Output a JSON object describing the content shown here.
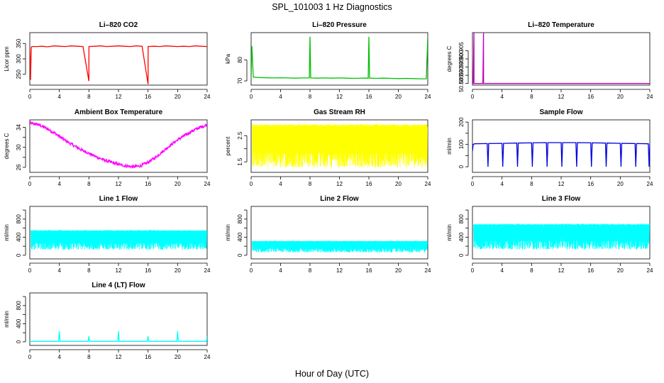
{
  "figure": {
    "title": "SPL_101003  1 Hz Diagnostics",
    "xlabel": "Hour of Day (UTC)"
  },
  "chart_data": [
    {
      "type": "line",
      "title": "Li–820 CO2",
      "ylabel": "Licor ppm",
      "color": "#ff0000",
      "xlim": [
        0,
        24
      ],
      "ylim": [
        215,
        385
      ],
      "yticks": [
        250,
        300,
        350
      ],
      "xticks": [
        0,
        4,
        8,
        12,
        16,
        20,
        24
      ],
      "x": [
        0.0,
        0.1,
        0.2,
        0.3,
        1.0,
        1.6,
        2.4,
        3.3,
        4.0,
        4.8,
        5.6,
        6.4,
        7.2,
        8.0,
        8.01,
        8.8,
        9.6,
        10.4,
        11.2,
        12.0,
        12.8,
        13.6,
        14.4,
        15.2,
        16.0,
        16.01,
        16.8,
        17.6,
        18.4,
        19.2,
        20.0,
        20.8,
        21.6,
        22.4,
        23.2,
        24.0
      ],
      "y": [
        335,
        232,
        338,
        340,
        340,
        341,
        339,
        342,
        341,
        340,
        342,
        341,
        340,
        228,
        340,
        341,
        342,
        340,
        341,
        342,
        341,
        340,
        342,
        341,
        218,
        340,
        341,
        340,
        342,
        341,
        340,
        341,
        340,
        342,
        341,
        340
      ]
    },
    {
      "type": "line",
      "title": "Li–820 Pressure",
      "ylabel": "kPa",
      "color": "#00c000",
      "xlim": [
        0,
        24
      ],
      "ylim": [
        68,
        93
      ],
      "yticks": [
        70,
        80
      ],
      "xticks": [
        0,
        4,
        8,
        12,
        16,
        20,
        24
      ],
      "x": [
        0.0,
        0.1,
        0.3,
        1.0,
        2.0,
        3.0,
        4.0,
        5.0,
        6.0,
        7.0,
        7.9,
        8.0,
        8.1,
        9.0,
        10.0,
        11.0,
        12.0,
        13.0,
        14.0,
        15.0,
        15.9,
        16.0,
        16.1,
        17.0,
        18.0,
        19.0,
        20.0,
        21.0,
        22.0,
        23.0,
        23.8,
        24.0
      ],
      "y": [
        71.5,
        86.5,
        71.8,
        71.6,
        71.5,
        71.4,
        71.5,
        71.4,
        71.3,
        71.4,
        71.4,
        91.0,
        71.4,
        71.3,
        71.4,
        71.3,
        71.4,
        71.3,
        71.2,
        71.3,
        71.3,
        91.0,
        71.3,
        71.2,
        71.3,
        71.2,
        71.1,
        71.2,
        71.1,
        71.0,
        71.0,
        91.0
      ]
    },
    {
      "type": "line",
      "title": "Li–820 Temperature",
      "ylabel": "degrees C",
      "color": "#c000c0",
      "xlim": [
        0,
        24
      ],
      "ylim": [
        50.884,
        50.916
      ],
      "yticks": [
        50.885,
        50.895,
        50.905
      ],
      "ytick_labels": [
        "50.885",
        "50.890",
        "50.895",
        "50.900",
        "50.905"
      ],
      "ytick_all": [
        50.885,
        50.89,
        50.895,
        50.9,
        50.905
      ],
      "xticks": [
        0,
        4,
        8,
        12,
        16,
        20,
        24
      ],
      "x": [
        0.0,
        0.1,
        0.2,
        0.21,
        0.3,
        1.4,
        1.5,
        1.51,
        1.6,
        24.0
      ],
      "y": [
        50.885,
        50.885,
        50.916,
        50.885,
        50.885,
        50.885,
        50.916,
        50.885,
        50.885,
        50.885
      ]
    },
    {
      "type": "line",
      "title": "Ambient Box Temperature",
      "ylabel": "degrees C",
      "color": "#ff00ff",
      "xlim": [
        0,
        24
      ],
      "ylim": [
        25,
        35.5
      ],
      "yticks": [
        26,
        30,
        34
      ],
      "ytick_all": [
        26,
        28,
        30,
        32,
        34
      ],
      "xticks": [
        0,
        4,
        8,
        12,
        16,
        20,
        24
      ],
      "x": [
        0,
        1,
        2,
        3,
        4,
        5,
        6,
        7,
        8,
        9,
        10,
        11,
        12,
        13,
        14,
        15,
        16,
        17,
        18,
        19,
        20,
        21,
        22,
        23,
        24
      ],
      "y": [
        34.8,
        34.6,
        34.0,
        33.2,
        32.2,
        31.2,
        30.3,
        29.5,
        28.8,
        28.1,
        27.5,
        27.0,
        26.6,
        26.3,
        26.1,
        26.3,
        27.0,
        28.0,
        29.2,
        30.4,
        31.5,
        32.4,
        33.3,
        34.0,
        34.5
      ],
      "noise": 0.6
    },
    {
      "type": "line",
      "title": "Gas Stream RH",
      "ylabel": "percent",
      "color": "#ffff00",
      "xlim": [
        0,
        24
      ],
      "ylim": [
        1.1,
        3.1
      ],
      "yticks": [
        1.5,
        2.5
      ],
      "ytick_all": [
        1.5,
        2.0,
        2.5
      ],
      "xticks": [
        0,
        4,
        8,
        12,
        16,
        20,
        24
      ],
      "band": [
        1.2,
        2.95
      ]
    },
    {
      "type": "line",
      "title": "Sample Flow",
      "ylabel": "ml/min",
      "color": "#0000e0",
      "xlim": [
        0,
        24
      ],
      "ylim": [
        -25,
        210
      ],
      "yticks": [
        0,
        100,
        200
      ],
      "ytick_all": [
        0,
        50,
        100,
        150,
        200
      ],
      "xticks": [
        0,
        4,
        8,
        12,
        16,
        20,
        24
      ],
      "x": [
        0.0,
        0.1,
        0.3,
        2.0,
        2.1,
        2.2,
        4.0,
        4.1,
        4.2,
        6.0,
        6.1,
        6.2,
        8.0,
        8.1,
        8.2,
        10.0,
        10.1,
        10.2,
        12.0,
        12.1,
        12.2,
        14.0,
        14.1,
        14.2,
        16.0,
        16.1,
        16.2,
        18.0,
        18.1,
        18.2,
        20.0,
        20.1,
        20.2,
        22.0,
        22.1,
        22.2,
        23.8,
        23.9,
        24.0
      ],
      "y": [
        70,
        100,
        103,
        104,
        0,
        104,
        105,
        0,
        105,
        106,
        0,
        106,
        107,
        0,
        107,
        108,
        0,
        108,
        108,
        0,
        108,
        108,
        0,
        108,
        107,
        0,
        107,
        106,
        0,
        106,
        105,
        0,
        105,
        104,
        0,
        104,
        103,
        0,
        103
      ]
    },
    {
      "type": "line",
      "title": "Line 1 Flow",
      "ylabel": "ml/min",
      "color": "#00ffff",
      "xlim": [
        0,
        24
      ],
      "ylim": [
        -80,
        1080
      ],
      "yticks": [
        0,
        400,
        800
      ],
      "ytick_all": [
        0,
        200,
        400,
        600,
        800,
        1000
      ],
      "xticks": [
        0,
        4,
        8,
        12,
        16,
        20,
        24
      ],
      "band": [
        100,
        560
      ]
    },
    {
      "type": "line",
      "title": "Line 2 Flow",
      "ylabel": "ml/min",
      "color": "#00ffff",
      "xlim": [
        0,
        24
      ],
      "ylim": [
        -80,
        1080
      ],
      "yticks": [
        0,
        400,
        800
      ],
      "ytick_all": [
        0,
        200,
        400,
        600,
        800,
        1000
      ],
      "xticks": [
        0,
        4,
        8,
        12,
        16,
        20,
        24
      ],
      "band": [
        50,
        320
      ]
    },
    {
      "type": "line",
      "title": "Line 3 Flow",
      "ylabel": "ml/min",
      "color": "#00ffff",
      "xlim": [
        0,
        24
      ],
      "ylim": [
        -80,
        1080
      ],
      "yticks": [
        0,
        400,
        800
      ],
      "ytick_all": [
        0,
        200,
        400,
        600,
        800,
        1000
      ],
      "xticks": [
        0,
        4,
        8,
        12,
        16,
        20,
        24
      ],
      "band": [
        100,
        700
      ]
    },
    {
      "type": "line",
      "title": "Line 4 (LT) Flow",
      "ylabel": "ml/min",
      "color": "#00ffff",
      "xlim": [
        0,
        24
      ],
      "ylim": [
        -80,
        1080
      ],
      "yticks": [
        0,
        400,
        800
      ],
      "ytick_all": [
        0,
        200,
        400,
        600,
        800,
        1000
      ],
      "xticks": [
        0,
        4,
        8,
        12,
        16,
        20,
        24
      ],
      "x": [
        0.0,
        3.9,
        4.0,
        4.1,
        7.9,
        8.0,
        8.1,
        11.9,
        12.0,
        12.1,
        15.9,
        16.0,
        16.1,
        19.9,
        20.0,
        20.1,
        23.9,
        24.0
      ],
      "y": [
        10,
        10,
        230,
        10,
        10,
        120,
        10,
        10,
        230,
        10,
        10,
        120,
        10,
        10,
        230,
        10,
        10,
        120
      ]
    }
  ]
}
